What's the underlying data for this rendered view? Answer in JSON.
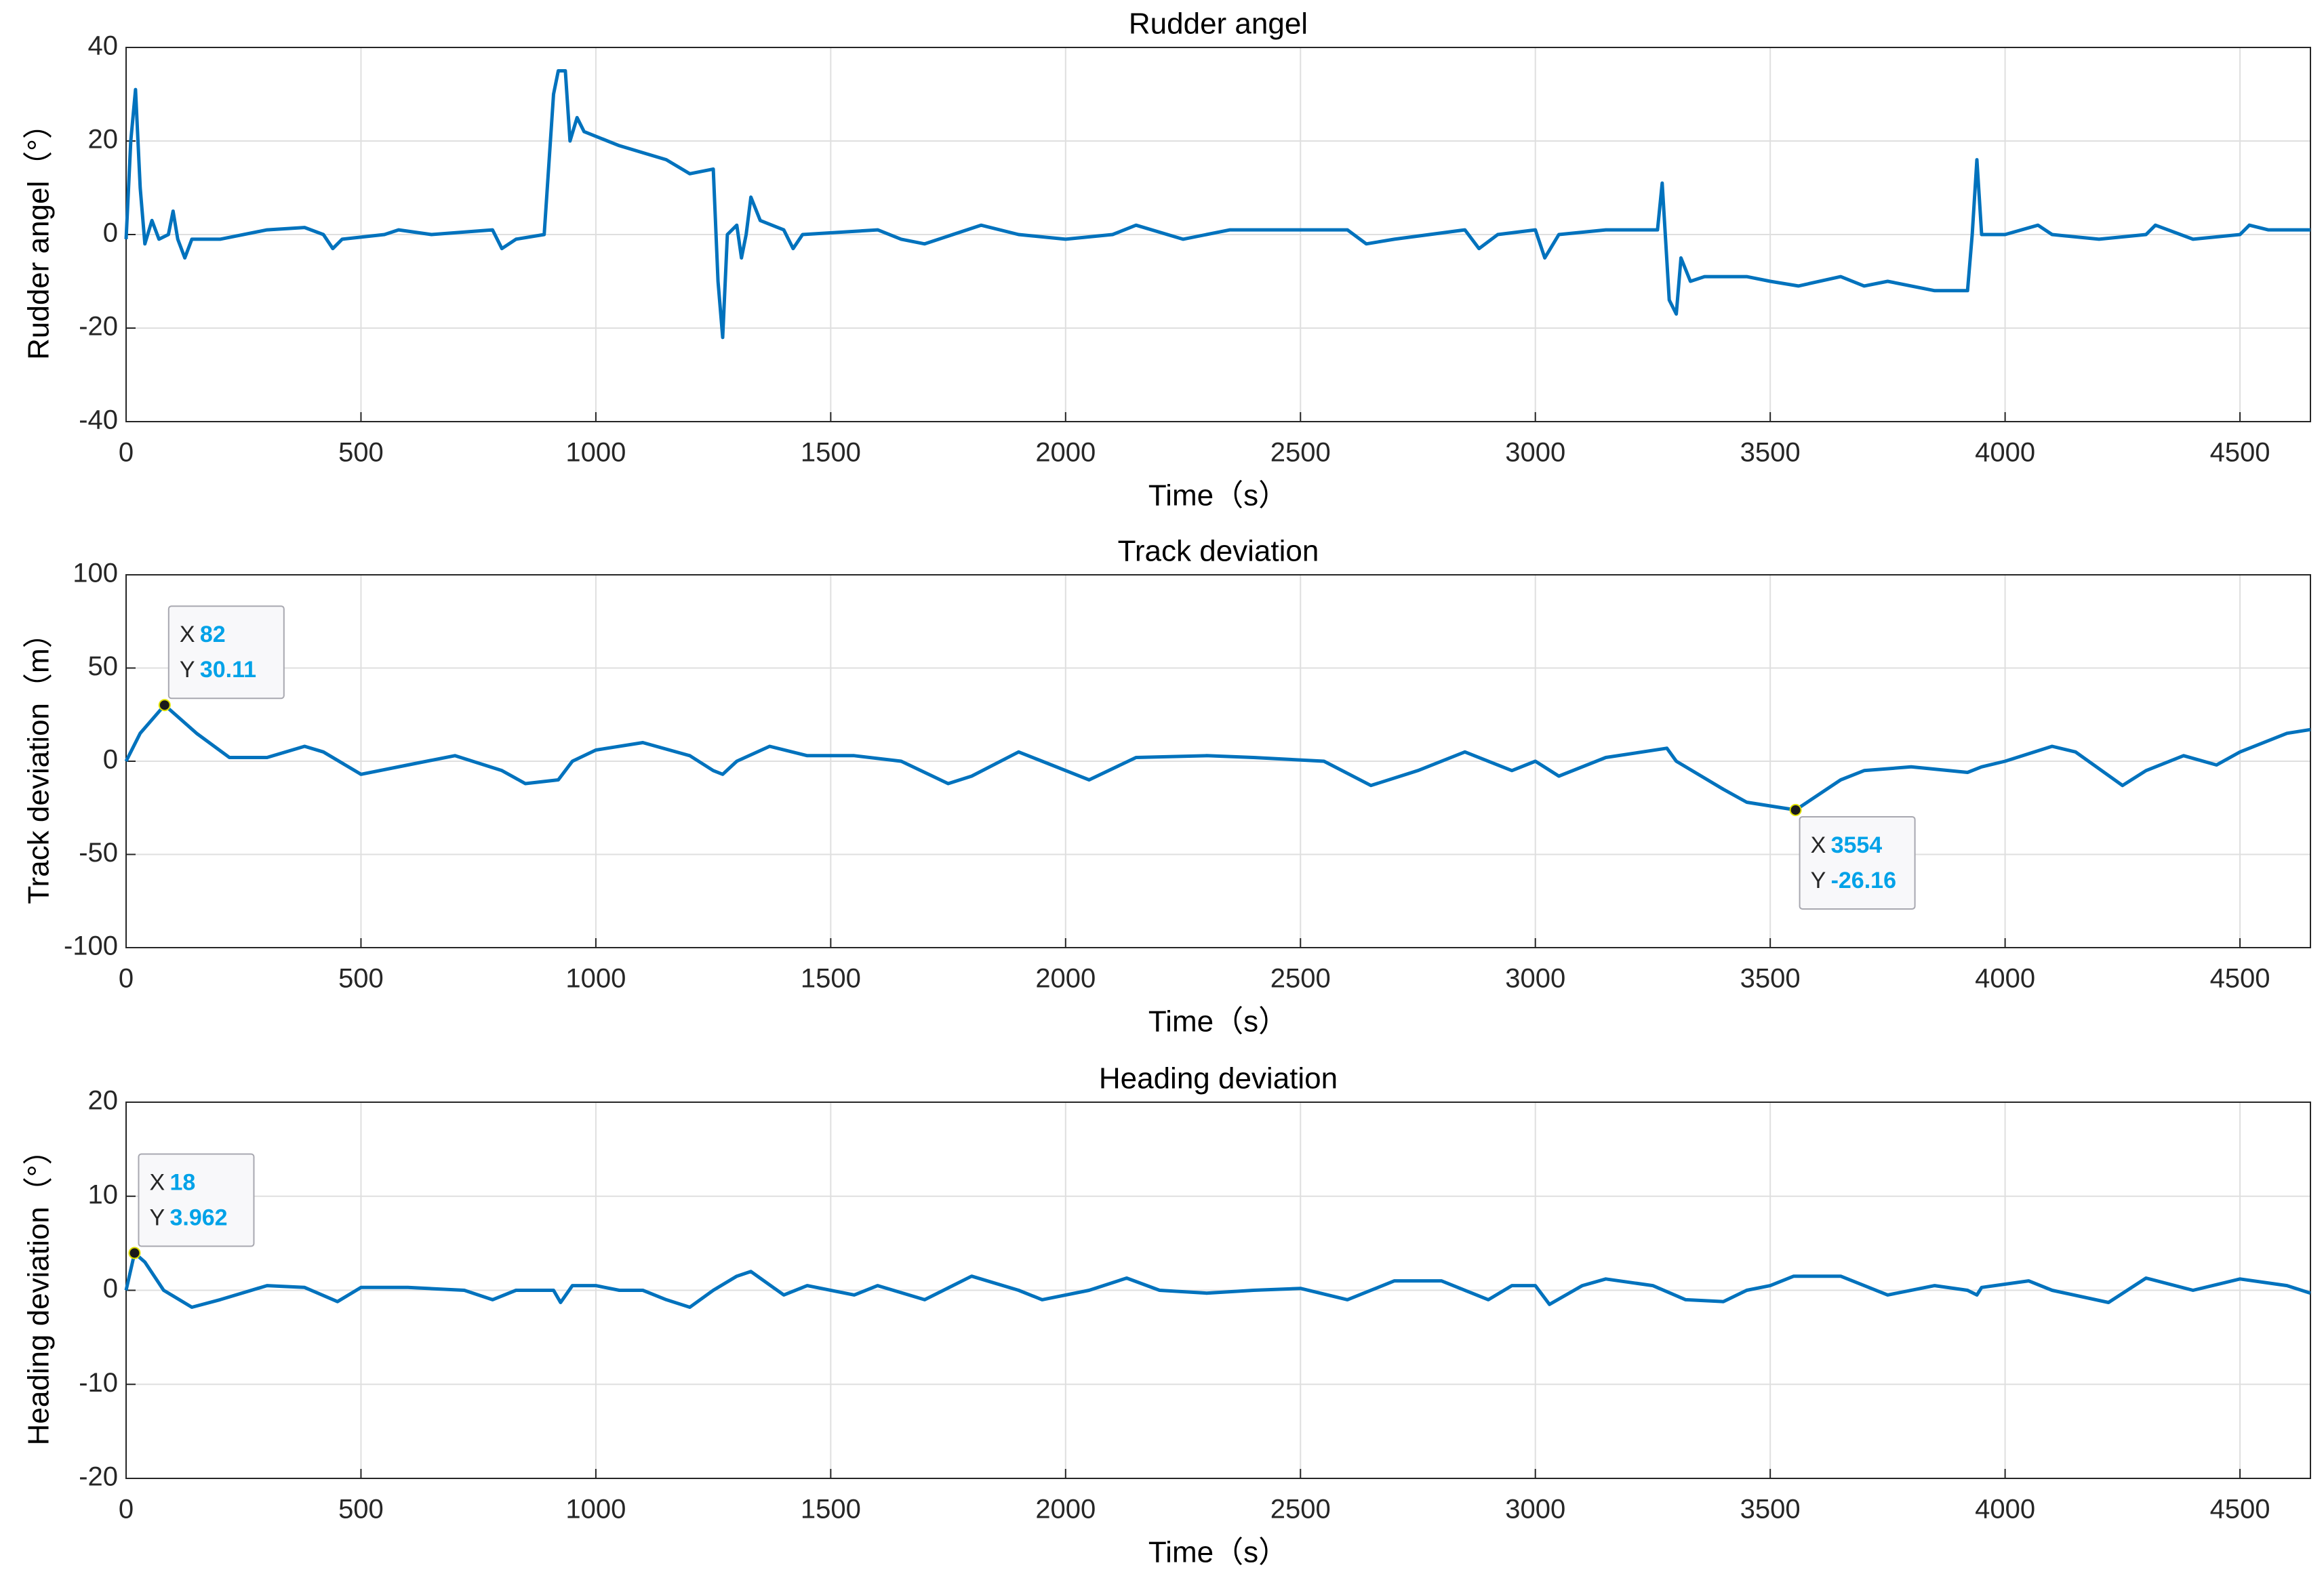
{
  "chart_data": [
    {
      "type": "line",
      "title": "Rudder angel",
      "x_label": "Time（s）",
      "y_label": "Rudder angel（°）",
      "xlim": [
        0,
        4650
      ],
      "xticks": [
        0,
        500,
        1000,
        1500,
        2000,
        2500,
        3000,
        3500,
        4000,
        4500
      ],
      "ylim": [
        -40,
        40
      ],
      "yticks": [
        -40,
        -20,
        0,
        20,
        40
      ],
      "grid": true,
      "x": [
        0,
        10,
        20,
        30,
        40,
        55,
        70,
        90,
        100,
        110,
        125,
        140,
        200,
        300,
        380,
        420,
        440,
        460,
        550,
        580,
        650,
        780,
        800,
        830,
        890,
        910,
        920,
        935,
        945,
        960,
        975,
        1050,
        1150,
        1200,
        1250,
        1260,
        1270,
        1280,
        1300,
        1310,
        1320,
        1330,
        1350,
        1400,
        1420,
        1440,
        1600,
        1650,
        1700,
        1820,
        1900,
        2000,
        2100,
        2150,
        2250,
        2350,
        2450,
        2600,
        2640,
        2700,
        2850,
        2880,
        2920,
        3000,
        3020,
        3050,
        3150,
        3260,
        3270,
        3285,
        3300,
        3310,
        3330,
        3360,
        3400,
        3450,
        3500,
        3560,
        3650,
        3700,
        3750,
        3850,
        3920,
        3930,
        3940,
        3950,
        4000,
        4070,
        4100,
        4200,
        4300,
        4320,
        4400,
        4500,
        4520,
        4560,
        4650
      ],
      "series": [
        {
          "color": "#0072BD",
          "values": [
            -1,
            20,
            31,
            10,
            -2,
            3,
            -1,
            0,
            5,
            -1,
            -5,
            -1,
            -1,
            1,
            1.5,
            0,
            -3,
            -1,
            0,
            1,
            0,
            1,
            -3,
            -1,
            0,
            30,
            35,
            35,
            20,
            25,
            22,
            19,
            16,
            13,
            14,
            -10,
            -22,
            0,
            2,
            -5,
            0,
            8,
            3,
            1,
            -3,
            0,
            1,
            -1,
            -2,
            2,
            0,
            -1,
            0,
            2,
            -1,
            1,
            1,
            1,
            -2,
            -1,
            1,
            -3,
            0,
            1,
            -5,
            0,
            1,
            1,
            11,
            -14,
            -17,
            -5,
            -10,
            -9,
            -9,
            -9,
            -10,
            -11,
            -9,
            -11,
            -10,
            -12,
            -12,
            0,
            16,
            0,
            0,
            2,
            0,
            -1,
            0,
            2,
            -1,
            0,
            2,
            1,
            1
          ]
        }
      ]
    },
    {
      "type": "line",
      "title": "Track deviation",
      "x_label": "Time（s）",
      "y_label": "Track deviation（m）",
      "xlim": [
        0,
        4650
      ],
      "xticks": [
        0,
        500,
        1000,
        1500,
        2000,
        2500,
        3000,
        3500,
        4000,
        4500
      ],
      "ylim": [
        -100,
        100
      ],
      "yticks": [
        -100,
        -50,
        0,
        50,
        100
      ],
      "grid": true,
      "x": [
        0,
        30,
        82,
        150,
        220,
        300,
        380,
        420,
        500,
        600,
        700,
        800,
        850,
        920,
        950,
        1000,
        1100,
        1200,
        1250,
        1270,
        1300,
        1370,
        1450,
        1550,
        1650,
        1750,
        1800,
        1900,
        1950,
        2050,
        2150,
        2300,
        2400,
        2550,
        2650,
        2750,
        2850,
        2950,
        3000,
        3050,
        3150,
        3280,
        3300,
        3400,
        3450,
        3500,
        3554,
        3650,
        3700,
        3800,
        3920,
        3950,
        4000,
        4100,
        4150,
        4250,
        4300,
        4380,
        4450,
        4500,
        4600,
        4650
      ],
      "series": [
        {
          "color": "#0072BD",
          "values": [
            0,
            15,
            30.11,
            15,
            2,
            2,
            8,
            5,
            -7,
            -2,
            3,
            -5,
            -12,
            -10,
            0,
            6,
            10,
            3,
            -5,
            -7,
            0,
            8,
            3,
            3,
            0,
            -12,
            -8,
            5,
            0,
            -10,
            2,
            3,
            2,
            0,
            -13,
            -5,
            5,
            -5,
            0,
            -8,
            2,
            7,
            0,
            -15,
            -22,
            -24,
            -26.16,
            -10,
            -5,
            -3,
            -6,
            -3,
            0,
            8,
            5,
            -13,
            -5,
            3,
            -2,
            5,
            15,
            17
          ]
        }
      ],
      "datatip_prefixes": [
        "X",
        "Y"
      ],
      "datatips": [
        {
          "x": 82,
          "y": 30.11
        },
        {
          "x": 3554,
          "y": -26.16
        }
      ]
    },
    {
      "type": "line",
      "title": "Heading deviation",
      "x_label": "Time（s）",
      "y_label": "Heading deviation（°）",
      "xlim": [
        0,
        4650
      ],
      "xticks": [
        0,
        500,
        1000,
        1500,
        2000,
        2500,
        3000,
        3500,
        4000,
        4500
      ],
      "ylim": [
        -20,
        20
      ],
      "yticks": [
        -20,
        -10,
        0,
        10,
        20
      ],
      "grid": true,
      "x": [
        0,
        18,
        40,
        80,
        140,
        200,
        300,
        380,
        450,
        500,
        600,
        720,
        780,
        830,
        910,
        925,
        950,
        1000,
        1050,
        1100,
        1150,
        1200,
        1250,
        1300,
        1330,
        1400,
        1450,
        1550,
        1600,
        1700,
        1800,
        1900,
        1950,
        2050,
        2130,
        2200,
        2300,
        2400,
        2500,
        2600,
        2700,
        2800,
        2900,
        2950,
        3000,
        3030,
        3100,
        3150,
        3250,
        3320,
        3400,
        3450,
        3500,
        3550,
        3650,
        3750,
        3850,
        3920,
        3940,
        3950,
        4050,
        4100,
        4220,
        4300,
        4400,
        4500,
        4600,
        4650
      ],
      "series": [
        {
          "color": "#0072BD",
          "values": [
            0,
            3.962,
            3,
            0,
            -1.8,
            -1,
            0.5,
            0.3,
            -1.2,
            0.3,
            0.3,
            0,
            -1,
            0,
            0,
            -1.3,
            0.5,
            0.5,
            0,
            0,
            -1,
            -1.8,
            0,
            1.5,
            2,
            -0.5,
            0.5,
            -0.5,
            0.5,
            -1,
            1.5,
            0,
            -1,
            0,
            1.3,
            0,
            -0.3,
            0,
            0.2,
            -1,
            1,
            1,
            -1,
            0.5,
            0.5,
            -1.5,
            0.5,
            1.2,
            0.5,
            -1,
            -1.2,
            0,
            0.5,
            1.5,
            1.5,
            -0.5,
            0.5,
            0,
            -0.5,
            0.3,
            1,
            0,
            -1.3,
            1.3,
            0,
            1.2,
            0.5,
            -0.3
          ]
        }
      ],
      "datatip_prefixes": [
        "X",
        "Y"
      ],
      "datatips": [
        {
          "x": 18,
          "y": 3.962
        }
      ]
    }
  ]
}
